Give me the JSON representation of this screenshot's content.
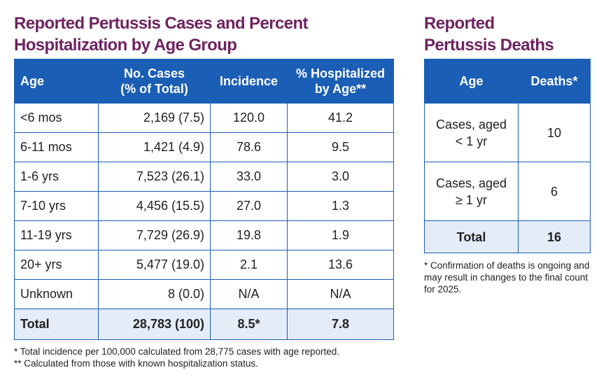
{
  "cases": {
    "title": [
      "Reported Pertussis Cases and Percent",
      "Hospitalization by Age Group"
    ],
    "headers": [
      [
        "Age"
      ],
      [
        "No. Cases",
        "(% of Total)"
      ],
      [
        "Incidence"
      ],
      [
        "% Hospitalized",
        "by Age**"
      ]
    ],
    "rows": [
      [
        "<6 mos",
        "2,169 (7.5)",
        "120.0",
        "41.2"
      ],
      [
        "6-11 mos",
        "1,421 (4.9)",
        "78.6",
        "9.5"
      ],
      [
        "1-6 yrs",
        "7,523 (26.1)",
        "33.0",
        "3.0"
      ],
      [
        "7-10 yrs",
        "4,456 (15.5)",
        "27.0",
        "1.3"
      ],
      [
        "11-19 yrs",
        "7,729 (26.9)",
        "19.8",
        "1.9"
      ],
      [
        "20+ yrs",
        "5,477 (19.0)",
        "2.1",
        "13.6"
      ],
      [
        "Unknown",
        "8 (0.0)",
        "N/A",
        "N/A"
      ]
    ],
    "total": [
      "Total",
      "28,783 (100)",
      "8.5*",
      "7.8"
    ],
    "footnotes": [
      "* Total incidence per 100,000 calculated from 28,775 cases with age reported.",
      "** Calculated from those with known hospitalization status."
    ]
  },
  "deaths": {
    "title": [
      "Reported",
      "Pertussis Deaths"
    ],
    "headers": [
      [
        "Age"
      ],
      [
        "Deaths*"
      ]
    ],
    "rows": [
      [
        [
          "Cases, aged",
          "< 1 yr"
        ],
        "10"
      ],
      [
        [
          "Cases, aged",
          "≥ 1 yr"
        ],
        "6"
      ]
    ],
    "total": [
      "Total",
      "16"
    ],
    "footnotes": [
      "* Confirmation of deaths is ongoing and may result in changes to the final count for 2025."
    ]
  }
}
